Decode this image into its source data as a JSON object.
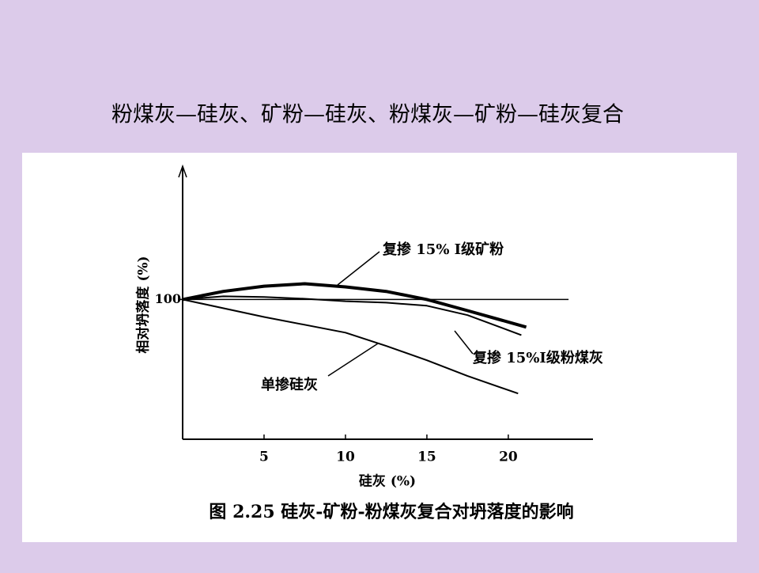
{
  "slide_title": "粉煤灰—硅灰、矿粉—硅灰、粉煤灰—矿粉—硅灰复合",
  "chart_data": {
    "type": "line",
    "caption": "图 2.25    硅灰-矿粉-粉煤灰复合对坍落度的影响",
    "x_label": "硅灰 (%)",
    "y_label": "相对坍落度 (%)",
    "xlim": [
      0,
      25.2
    ],
    "ylim": [
      60,
      137
    ],
    "xticks": [
      5,
      10,
      15,
      20
    ],
    "yticks": [
      100
    ],
    "reference_line": {
      "value": 100,
      "x": [
        0,
        23.7
      ]
    },
    "series": [
      {
        "name": "复掺 15% Ⅰ级矿粉",
        "color": "#000000",
        "line_width": 4,
        "x": [
          0,
          2.5,
          5,
          7.5,
          10,
          12.5,
          15,
          17.5,
          21.1
        ],
        "values": [
          100,
          102.3,
          103.8,
          104.5,
          103.6,
          102.3,
          100,
          96.8,
          92.1
        ]
      },
      {
        "name": "复掺 15%Ⅰ级粉煤灰",
        "color": "#000000",
        "line_width": 2,
        "x": [
          0,
          2.5,
          5,
          7.5,
          10,
          12.5,
          15,
          17.5,
          20.8
        ],
        "values": [
          100,
          100.9,
          100.7,
          100.2,
          99.5,
          99.1,
          98.2,
          95.5,
          89.8
        ]
      },
      {
        "name": "单掺硅灰",
        "color": "#000000",
        "line_width": 2,
        "x": [
          0,
          5,
          10,
          12.5,
          15,
          17.5,
          20.6
        ],
        "values": [
          100,
          95.0,
          90.5,
          86.7,
          82.6,
          78.1,
          73.1
        ]
      }
    ]
  }
}
